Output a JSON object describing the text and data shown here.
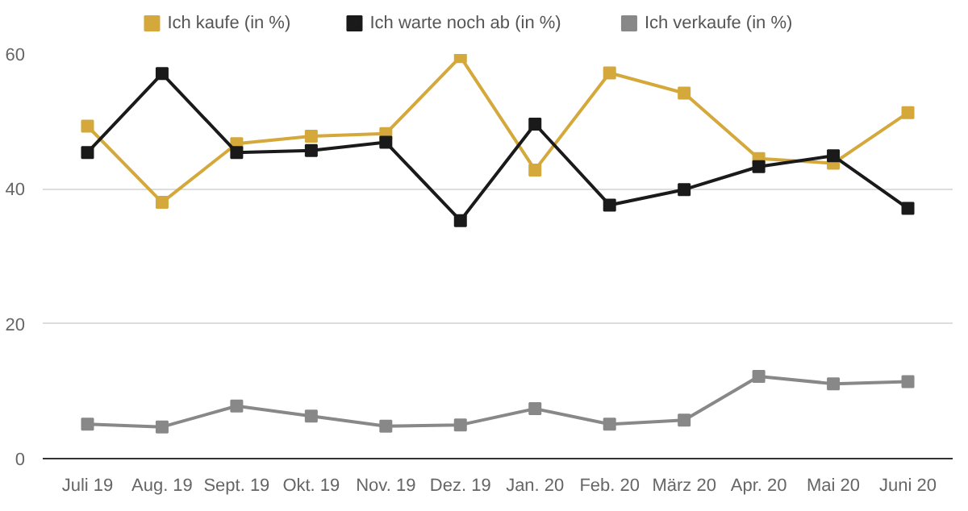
{
  "chart_data": {
    "type": "line",
    "categories": [
      "Juli 19",
      "Aug. 19",
      "Sept. 19",
      "Okt. 19",
      "Nov. 19",
      "Dez. 19",
      "Jan. 20",
      "Feb. 20",
      "März 20",
      "Apr. 20",
      "Mai 20",
      "Juni 20"
    ],
    "series": [
      {
        "name": "Ich kaufe (in %)",
        "color": "#d4a83a",
        "values": [
          49.3,
          38.0,
          46.7,
          47.8,
          48.2,
          59.6,
          42.8,
          57.2,
          54.2,
          44.5,
          43.8,
          51.3
        ]
      },
      {
        "name": "Ich warte noch ab (in %)",
        "color": "#1a1a1a",
        "values": [
          45.4,
          57.1,
          45.4,
          45.7,
          46.9,
          35.3,
          49.6,
          37.6,
          39.9,
          43.3,
          44.9,
          37.1
        ]
      },
      {
        "name": "Ich verkaufe (in %)",
        "color": "#888888",
        "values": [
          5.1,
          4.7,
          7.8,
          6.3,
          4.8,
          5.0,
          7.4,
          5.1,
          5.7,
          12.2,
          11.1,
          11.4
        ]
      }
    ],
    "ylim": [
      0,
      60
    ],
    "yticks": [
      0,
      20,
      40,
      60
    ],
    "grid": "y",
    "legend": "top",
    "marker": "square",
    "line_style": "solid"
  }
}
